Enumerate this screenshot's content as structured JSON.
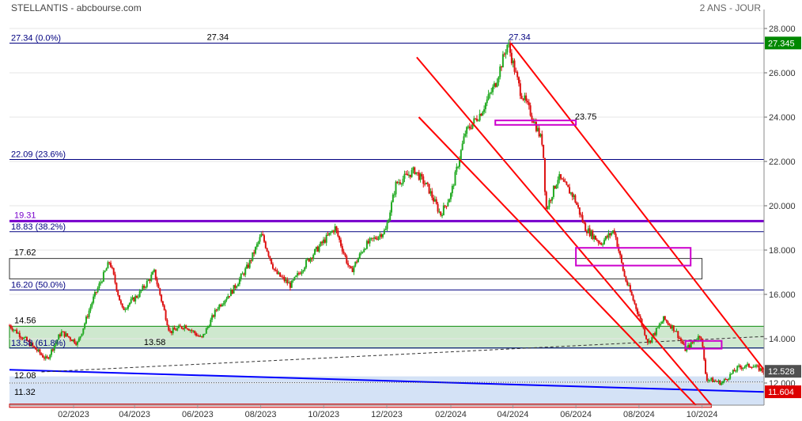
{
  "header": {
    "title": "STELLANTIS - abcbourse.com",
    "period": "2 ANS - JOUR"
  },
  "colors": {
    "up": "#22aa22",
    "down": "#dd1111",
    "fib": "#000080",
    "purple": "#7700cc",
    "channel": "#ff0000",
    "support": "#0000ff",
    "green_zone": "#008800",
    "magenta": "#cc00cc"
  },
  "chart_data": {
    "type": "candlestick",
    "y_axis": {
      "min": 11.0,
      "max": 28.5,
      "ticks": [
        "28.000",
        "26.000",
        "24.000",
        "22.000",
        "20.000",
        "18.000",
        "16.000",
        "14.000",
        "12.000"
      ]
    },
    "x_axis": {
      "start": "2022-12-01",
      "end": "2024-11-30",
      "ticks": [
        {
          "date": "2023-02-01",
          "label": "02/2023"
        },
        {
          "date": "2023-04-01",
          "label": "04/2023"
        },
        {
          "date": "2023-06-01",
          "label": "06/2023"
        },
        {
          "date": "2023-08-01",
          "label": "08/2023"
        },
        {
          "date": "2023-10-01",
          "label": "10/2023"
        },
        {
          "date": "2023-12-01",
          "label": "12/2023"
        },
        {
          "date": "2024-02-01",
          "label": "02/2024"
        },
        {
          "date": "2024-04-01",
          "label": "04/2024"
        },
        {
          "date": "2024-06-01",
          "label": "06/2024"
        },
        {
          "date": "2024-08-01",
          "label": "08/2024"
        },
        {
          "date": "2024-10-01",
          "label": "10/2024"
        }
      ]
    },
    "price_series": [
      {
        "date": "2022-12-01",
        "close": 14.6
      },
      {
        "date": "2022-12-20",
        "close": 13.8
      },
      {
        "date": "2023-01-06",
        "close": 13.05
      },
      {
        "date": "2023-01-20",
        "close": 14.3
      },
      {
        "date": "2023-02-05",
        "close": 13.8
      },
      {
        "date": "2023-02-20",
        "close": 15.8
      },
      {
        "date": "2023-03-08",
        "close": 17.5
      },
      {
        "date": "2023-03-20",
        "close": 15.3
      },
      {
        "date": "2023-04-05",
        "close": 16.0
      },
      {
        "date": "2023-04-20",
        "close": 17.0
      },
      {
        "date": "2023-05-05",
        "close": 14.3
      },
      {
        "date": "2023-05-20",
        "close": 14.6
      },
      {
        "date": "2023-06-05",
        "close": 14.0
      },
      {
        "date": "2023-06-20",
        "close": 15.4
      },
      {
        "date": "2023-07-05",
        "close": 16.2
      },
      {
        "date": "2023-07-20",
        "close": 17.3
      },
      {
        "date": "2023-08-02",
        "close": 18.7
      },
      {
        "date": "2023-08-15",
        "close": 17.0
      },
      {
        "date": "2023-08-30",
        "close": 16.4
      },
      {
        "date": "2023-09-15",
        "close": 17.5
      },
      {
        "date": "2023-10-01",
        "close": 18.4
      },
      {
        "date": "2023-10-12",
        "close": 19.0
      },
      {
        "date": "2023-10-27",
        "close": 17.0
      },
      {
        "date": "2023-11-10",
        "close": 18.2
      },
      {
        "date": "2023-11-30",
        "close": 18.9
      },
      {
        "date": "2023-12-10",
        "close": 21.0
      },
      {
        "date": "2023-12-28",
        "close": 21.6
      },
      {
        "date": "2024-01-10",
        "close": 20.8
      },
      {
        "date": "2024-01-22",
        "close": 19.6
      },
      {
        "date": "2024-02-01",
        "close": 20.5
      },
      {
        "date": "2024-02-15",
        "close": 23.3
      },
      {
        "date": "2024-03-01",
        "close": 24.2
      },
      {
        "date": "2024-03-15",
        "close": 25.5
      },
      {
        "date": "2024-03-27",
        "close": 27.34
      },
      {
        "date": "2024-04-08",
        "close": 25.2
      },
      {
        "date": "2024-04-20",
        "close": 24.0
      },
      {
        "date": "2024-04-30",
        "close": 22.8
      },
      {
        "date": "2024-05-03",
        "close": 19.8
      },
      {
        "date": "2024-05-15",
        "close": 21.3
      },
      {
        "date": "2024-05-30",
        "close": 20.4
      },
      {
        "date": "2024-06-10",
        "close": 19.0
      },
      {
        "date": "2024-06-25",
        "close": 18.3
      },
      {
        "date": "2024-07-08",
        "close": 18.9
      },
      {
        "date": "2024-07-18",
        "close": 16.8
      },
      {
        "date": "2024-07-30",
        "close": 15.3
      },
      {
        "date": "2024-08-10",
        "close": 13.8
      },
      {
        "date": "2024-08-25",
        "close": 14.9
      },
      {
        "date": "2024-09-05",
        "close": 14.4
      },
      {
        "date": "2024-09-15",
        "close": 13.5
      },
      {
        "date": "2024-09-30",
        "close": 14.2
      },
      {
        "date": "2024-10-05",
        "close": 12.2
      },
      {
        "date": "2024-10-20",
        "close": 12.0
      },
      {
        "date": "2024-11-05",
        "close": 12.7
      },
      {
        "date": "2024-11-18",
        "close": 12.8
      },
      {
        "date": "2024-11-30",
        "close": 12.53
      }
    ],
    "fibonacci": [
      {
        "value": 27.34,
        "label": "27.34  (0.0%)"
      },
      {
        "value": 22.09,
        "label": "22.09  (23.6%)"
      },
      {
        "value": 18.83,
        "label": "18.83  (38.2%)"
      },
      {
        "value": 16.2,
        "label": "16.20  (50.0%)"
      },
      {
        "value": 13.58,
        "label": "13.58  (61.8%)"
      }
    ],
    "level_labels": [
      {
        "value": 19.31,
        "text": "19.31",
        "side": "left",
        "color": "#7700cc"
      },
      {
        "value": 17.62,
        "text": "17.62",
        "side": "left",
        "color": "#000000"
      },
      {
        "value": 14.56,
        "text": "14.56",
        "side": "left",
        "color": "#000000"
      },
      {
        "value": 12.08,
        "text": "12.08",
        "side": "left",
        "color": "#000000"
      },
      {
        "value": 11.32,
        "text": "11.32",
        "side": "left",
        "color": "#000000"
      },
      {
        "value": 27.34,
        "text": "27.34",
        "side": "mid",
        "color": "#000000",
        "date": "2023-06-10"
      },
      {
        "value": 13.58,
        "text": "13.58",
        "side": "mid",
        "color": "#000000",
        "date": "2023-04-10"
      },
      {
        "value": 27.34,
        "text": "27.34",
        "side": "mid",
        "color": "#000080",
        "date": "2024-03-28"
      },
      {
        "value": 23.75,
        "text": "23.75",
        "side": "mid",
        "color": "#000000",
        "date": "2024-05-31"
      }
    ],
    "zones": [
      {
        "kind": "green",
        "from": 13.58,
        "to": 14.56,
        "start": "2022-12-01",
        "end": "2024-11-30"
      },
      {
        "kind": "gray",
        "from": 16.7,
        "to": 17.62,
        "start": "2022-12-01",
        "end": "2024-10-01"
      },
      {
        "kind": "blue",
        "from": 11.0,
        "to": 12.3,
        "start": "2022-12-01",
        "end": "2024-11-30"
      },
      {
        "kind": "red",
        "from": 10.9,
        "to": 11.05,
        "start": "2022-12-01",
        "end": "2024-10-10"
      }
    ],
    "channel_lines": [
      {
        "p1": {
          "date": "2024-03-30",
          "value": 27.34
        },
        "p2": {
          "date": "2024-11-30",
          "value": 12.6
        }
      },
      {
        "p1": {
          "date": "2024-01-01",
          "value": 24.0
        },
        "p2": {
          "date": "2024-09-25",
          "value": 11.0
        }
      },
      {
        "p1": {
          "date": "2023-12-30",
          "value": 26.7
        },
        "p2": {
          "date": "2024-10-10",
          "value": 11.0
        }
      }
    ],
    "trend_lines": [
      {
        "style": "blue",
        "p1": {
          "date": "2022-12-01",
          "value": 12.6
        },
        "p2": {
          "date": "2024-11-30",
          "value": 11.6
        }
      },
      {
        "style": "dashed",
        "p1": {
          "date": "2023-01-01",
          "value": 12.5
        },
        "p2": {
          "date": "2024-11-30",
          "value": 14.1
        }
      },
      {
        "style": "dotted",
        "p1": {
          "date": "2022-12-01",
          "value": 12.0
        },
        "p2": {
          "date": "2024-11-30",
          "value": 12.05
        }
      }
    ],
    "boxes": [
      {
        "from": 23.65,
        "to": 23.85,
        "start": "2024-03-15",
        "end": "2024-06-01"
      },
      {
        "from": 17.3,
        "to": 18.1,
        "start": "2024-06-01",
        "end": "2024-09-20"
      },
      {
        "from": 13.55,
        "to": 13.9,
        "start": "2024-09-15",
        "end": "2024-10-20"
      }
    ],
    "right_badges": [
      {
        "value": 27.345,
        "text": "27.345",
        "color": "#008800"
      },
      {
        "value": 12.528,
        "text": "12.528",
        "color": "#505050"
      },
      {
        "value": 11.604,
        "text": "11.604",
        "color": "#dd0000"
      }
    ]
  }
}
